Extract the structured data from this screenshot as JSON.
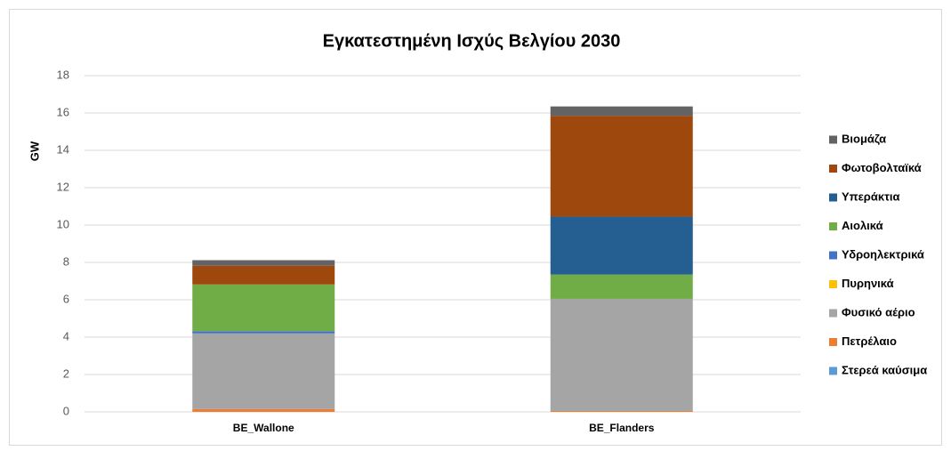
{
  "chart_data": {
    "type": "stacked_bar",
    "title": "Εγκατεστημένη Ισχύς  Βελγίου 2030",
    "y_label": "GW",
    "categories": [
      "BE_Wallone",
      "BE_Flanders"
    ],
    "series": [
      {
        "name": "Στερεά καύσιμα",
        "color": "#5b9bd5",
        "values": [
          0,
          0
        ]
      },
      {
        "name": "Πετρέλαιο",
        "color": "#ed7d31",
        "values": [
          0.15,
          0.05
        ]
      },
      {
        "name": "Φυσικό αέριο",
        "color": "#a5a5a5",
        "values": [
          4.05,
          6.0
        ]
      },
      {
        "name": "Πυρηνικά",
        "color": "#ffc000",
        "values": [
          0,
          0
        ]
      },
      {
        "name": "Υδροηλεκτρικά",
        "color": "#4472c4",
        "values": [
          0.12,
          0
        ]
      },
      {
        "name": "Αιολικά",
        "color": "#70ad47",
        "values": [
          2.5,
          1.3
        ]
      },
      {
        "name": "Υπεράκτια",
        "color": "#255e91",
        "values": [
          0,
          3.1
        ]
      },
      {
        "name": "Φωτοβολταϊκά",
        "color": "#9e480e",
        "values": [
          1.0,
          5.4
        ]
      },
      {
        "name": "Βιομάζα",
        "color": "#636363",
        "values": [
          0.3,
          0.5
        ]
      }
    ],
    "ylim": [
      0,
      18
    ],
    "yticks": [
      0,
      2,
      4,
      6,
      8,
      10,
      12,
      14,
      16,
      18
    ],
    "grid": true,
    "legend": "right"
  }
}
